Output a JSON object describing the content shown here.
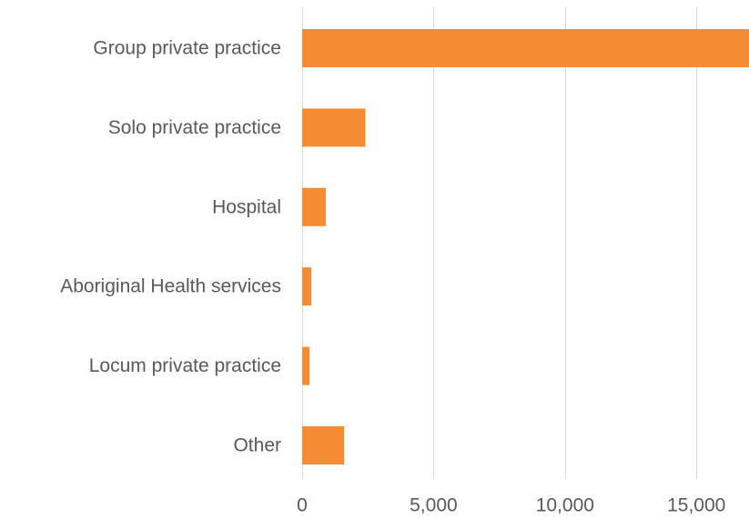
{
  "chart_data": {
    "type": "bar",
    "orientation": "horizontal",
    "categories": [
      "Group private practice",
      "Solo private practice",
      "Hospital",
      "Aboriginal Health services",
      "Locum private practice",
      "Other"
    ],
    "values": [
      17000,
      2400,
      900,
      350,
      280,
      1600
    ],
    "xlim": [
      0,
      17000
    ],
    "xticks": [
      0,
      5000,
      10000,
      15000
    ],
    "xtick_labels": [
      "0",
      "5,000",
      "10,000",
      "15,000"
    ],
    "grid": "vertical",
    "legend": "none",
    "bar_color": "#F58C35",
    "grid_color": "#D9D9D9",
    "text_color": "#595959"
  }
}
